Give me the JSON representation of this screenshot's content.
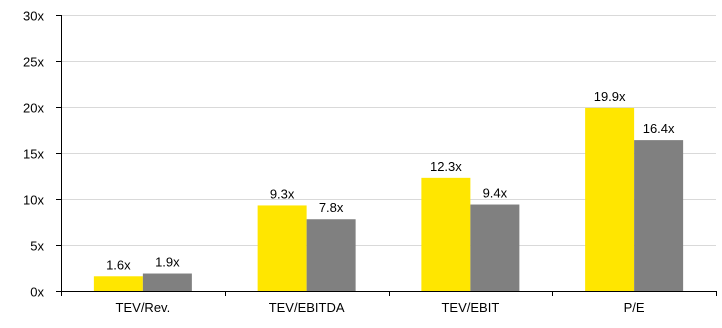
{
  "chart_data": {
    "type": "bar",
    "title": "",
    "xlabel": "",
    "ylabel": "",
    "categories": [
      "TEV/Rev.",
      "TEV/EBITDA",
      "TEV/EBIT",
      "P/E"
    ],
    "series": [
      {
        "values": [
          1.6,
          9.3,
          12.3,
          19.9
        ],
        "labels": [
          "1.6x",
          "9.3x",
          "12.3x",
          "19.9x"
        ],
        "color": "#FFE600"
      },
      {
        "values": [
          1.9,
          7.8,
          9.4,
          16.4
        ],
        "labels": [
          "1.9x",
          "7.8x",
          "9.4x",
          "16.4x"
        ],
        "color": "#808080"
      }
    ],
    "ylim": [
      0,
      30
    ],
    "yticks": [
      0,
      5,
      10,
      15,
      20,
      25,
      30
    ],
    "ytick_labels": [
      "0x",
      "5x",
      "10x",
      "15x",
      "20x",
      "25x",
      "30x"
    ],
    "grid": true,
    "legend": "none",
    "colors": {
      "grid": "#D9D9D9",
      "axis": "#000000"
    }
  }
}
